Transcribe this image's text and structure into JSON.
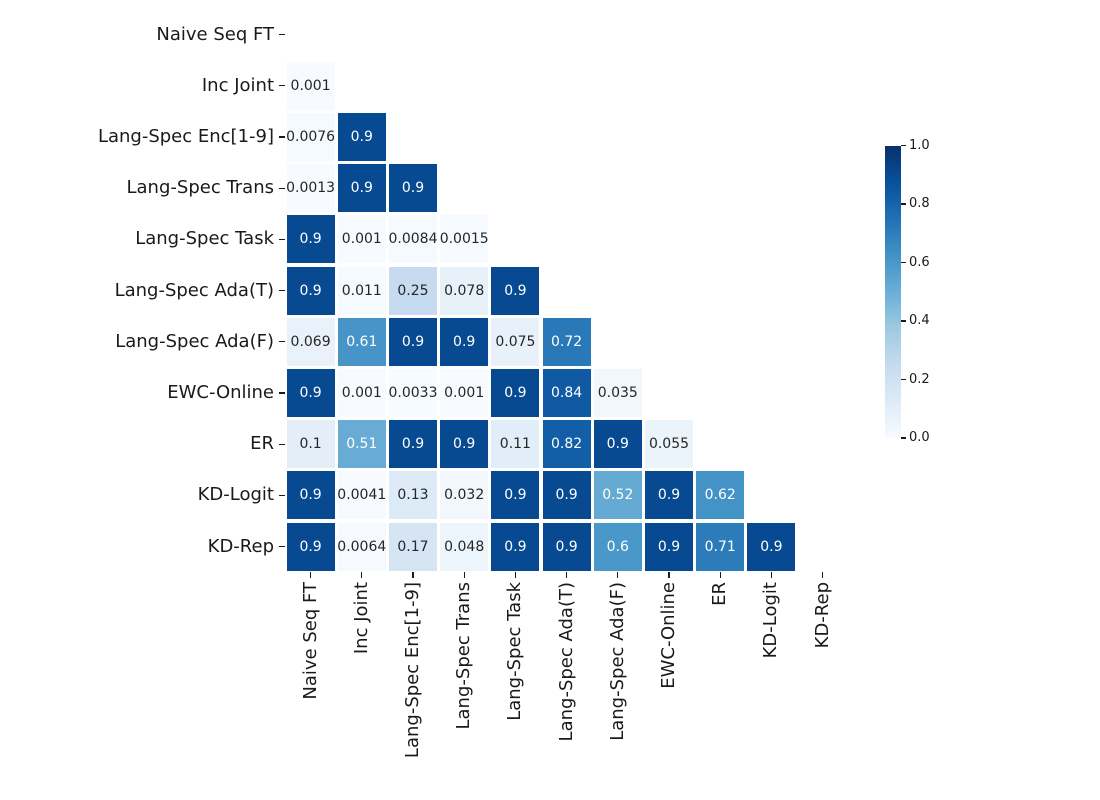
{
  "chart_data": {
    "type": "heatmap",
    "title": "",
    "description": "Lower-triangular pairwise matrix heatmap with numeric annotations, Blues colormap",
    "labels": [
      "Naive Seq FT",
      "Inc Joint",
      "Lang-Spec Enc[1-9]",
      "Lang-Spec Trans",
      "Lang-Spec Task",
      "Lang-Spec Ada(T)",
      "Lang-Spec Ada(F)",
      "EWC-Online",
      "ER",
      "KD-Logit",
      "KD-Rep"
    ],
    "rows": [
      [],
      [
        "0.001"
      ],
      [
        "0.0076",
        "0.9"
      ],
      [
        "0.0013",
        "0.9",
        "0.9"
      ],
      [
        "0.9",
        "0.001",
        "0.0084",
        "0.0015"
      ],
      [
        "0.9",
        "0.011",
        "0.25",
        "0.078",
        "0.9"
      ],
      [
        "0.069",
        "0.61",
        "0.9",
        "0.9",
        "0.075",
        "0.72"
      ],
      [
        "0.9",
        "0.001",
        "0.0033",
        "0.001",
        "0.9",
        "0.84",
        "0.035"
      ],
      [
        "0.1",
        "0.51",
        "0.9",
        "0.9",
        "0.11",
        "0.82",
        "0.9",
        "0.055"
      ],
      [
        "0.9",
        "0.0041",
        "0.13",
        "0.032",
        "0.9",
        "0.9",
        "0.52",
        "0.9",
        "0.62"
      ],
      [
        "0.9",
        "0.0064",
        "0.17",
        "0.048",
        "0.9",
        "0.9",
        "0.6",
        "0.9",
        "0.71",
        "0.9"
      ]
    ],
    "vmin": 0.0,
    "vmax": 1.0,
    "colormap": "Blues",
    "colormap_stops": [
      "#f7fbff",
      "#deebf7",
      "#c6dbef",
      "#9ecae1",
      "#6baed6",
      "#4292c6",
      "#2171b5",
      "#08519c",
      "#08306b"
    ],
    "colorbar_ticks": [
      "1.0",
      "0.8",
      "0.6",
      "0.4",
      "0.2",
      "0.0"
    ],
    "annot_color_dark": "#262626",
    "annot_color_light": "#ffffff",
    "background": "#ffffff",
    "grid_line_color": "#ffffff",
    "legend_position": "right"
  }
}
